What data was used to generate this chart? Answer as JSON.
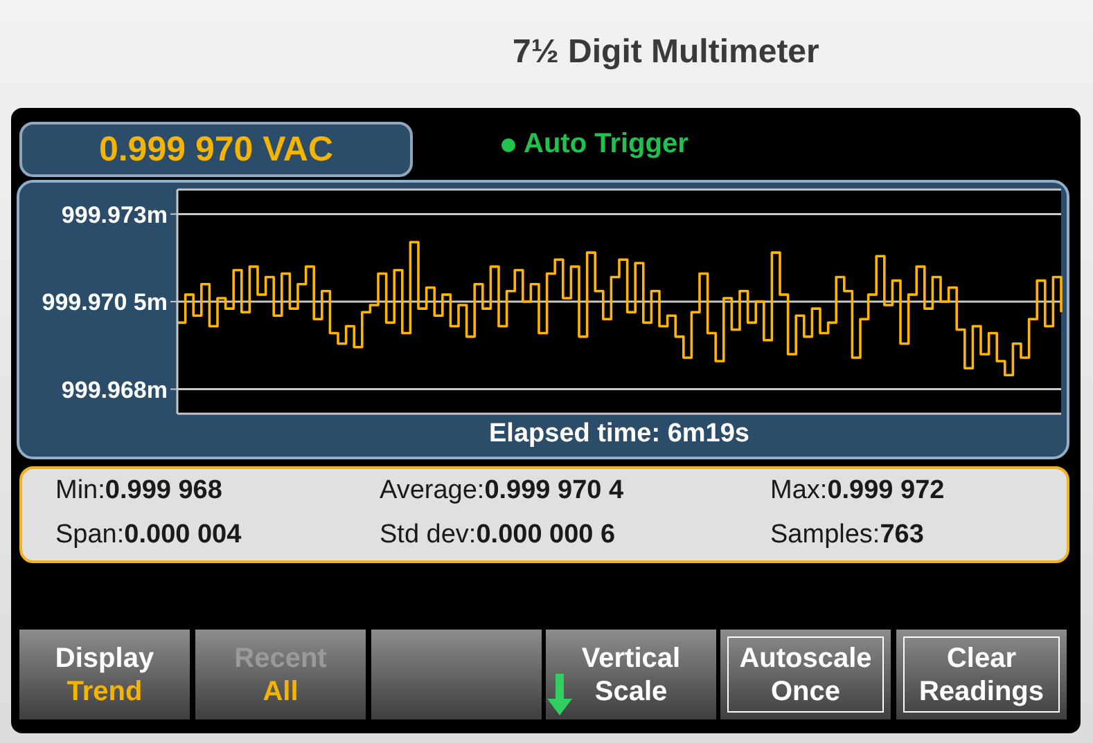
{
  "chart_data": {
    "type": "step",
    "title": "7½ Digit Multimeter",
    "subtitle": "0.999 970 VAC",
    "xlabel": "Elapsed time: 6m19s",
    "categories": [
      null,
      null,
      null,
      null,
      null,
      null,
      null,
      null,
      null,
      null,
      null,
      null,
      null,
      null,
      null,
      null,
      null,
      null,
      null,
      null,
      null,
      null,
      null,
      null,
      null,
      null,
      null,
      null,
      null,
      null,
      null,
      null,
      null,
      null,
      null,
      null,
      null,
      null,
      null,
      null,
      null,
      null,
      null,
      null,
      null,
      null,
      null,
      null,
      null,
      null,
      null,
      null,
      null,
      null,
      null,
      null,
      null,
      null,
      null,
      null,
      null,
      null,
      null,
      null,
      null,
      null,
      null,
      null,
      null,
      null,
      null,
      null,
      null,
      null,
      null,
      null,
      null,
      null,
      null,
      null,
      null,
      null,
      null,
      null,
      null,
      null,
      null,
      null,
      null,
      null,
      null,
      null,
      null,
      null,
      null,
      null,
      null,
      null,
      null,
      null,
      null,
      null,
      null,
      null,
      null,
      null,
      null,
      null,
      null,
      null,
      null
    ],
    "values": [
      999.9699,
      999.9707,
      999.9701,
      999.971,
      999.9698,
      999.9706,
      999.9703,
      999.9714,
      999.9702,
      999.9715,
      999.9707,
      999.9712,
      999.9701,
      999.9713,
      999.9703,
      999.971,
      999.9715,
      999.97,
      999.9708,
      999.9696,
      999.9693,
      999.9698,
      999.9692,
      999.9702,
      999.9704,
      999.9713,
      999.9699,
      999.9714,
      999.9696,
      999.9722,
      999.9703,
      999.9709,
      999.9701,
      999.9707,
      999.9698,
      999.9704,
      999.9695,
      999.971,
      999.9703,
      999.9715,
      999.9698,
      999.9708,
      999.9714,
      999.9705,
      999.971,
      999.9696,
      999.9713,
      999.9717,
      999.9706,
      999.9715,
      999.9695,
      999.9719,
      999.9708,
      999.97,
      999.9712,
      999.9717,
      999.9702,
      999.9716,
      999.9699,
      999.9708,
      999.9698,
      999.9701,
      999.9695,
      999.9689,
      999.9702,
      999.9713,
      999.9696,
      999.9688,
      999.9706,
      999.9697,
      999.9708,
      999.9699,
      999.9705,
      999.9694,
      999.9719,
      999.9707,
      999.969,
      999.9701,
      999.9695,
      999.9703,
      999.9696,
      999.9699,
      999.9712,
      999.9708,
      999.9689,
      999.97,
      999.9707,
      999.9718,
      999.9704,
      999.9711,
      999.9693,
      999.9707,
      999.9715,
      999.9703,
      999.9712,
      999.9705,
      999.9709,
      999.9697,
      999.9686,
      999.9698,
      999.969,
      999.9696,
      999.9688,
      999.9684,
      999.9693,
      999.9689,
      999.97,
      999.9711,
      999.9698,
      999.9712,
      999.9702
    ],
    "color": "#ffb400",
    "ylim": [
      999.9673,
      999.9737
    ],
    "yticks": [
      {
        "value": 999.968,
        "label": "999.968m"
      },
      {
        "value": 999.9705,
        "label": "999.970 5m"
      },
      {
        "value": 999.973,
        "label": "999.973m"
      }
    ],
    "grid": "y",
    "annotations": [
      "Auto Trigger",
      "Min:0.999 968",
      "Average:0.999 970 4",
      "Max:0.999 972",
      "Span:0.000 004",
      "Std dev:0.000 000 6",
      "Samples:763",
      "Display\nTrend",
      "Recent\nAll",
      "Vertical\nScale",
      "Autoscale\nOnce",
      "Clear\nReadings"
    ]
  }
}
